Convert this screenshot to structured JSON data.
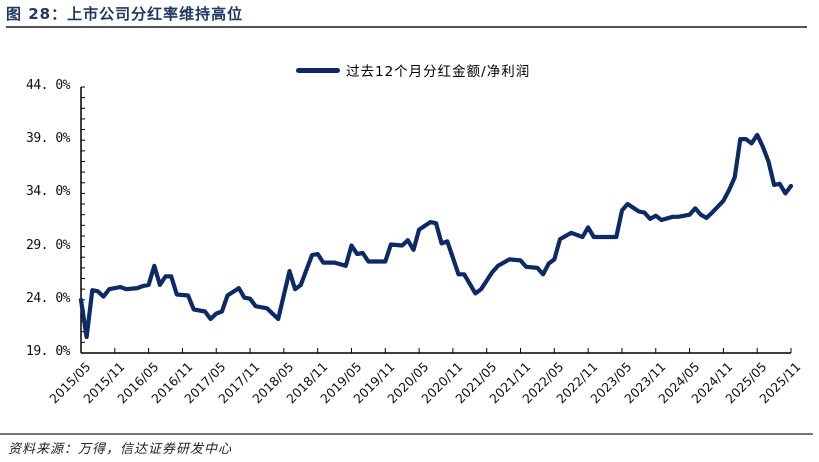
{
  "figure": {
    "title": "图 28：上市公司分红率维持高位",
    "source": "资料来源：万得，信达证券研发中心"
  },
  "colors": {
    "series": "#0b2a66",
    "title": "#1f3864",
    "axis": "#000000"
  },
  "chart_data": {
    "type": "line",
    "title": "图 28：上市公司分红率维持高位",
    "xlabel": "",
    "ylabel": "",
    "ylim": [
      19.0,
      44.0
    ],
    "yticks": [
      "19.0%",
      "24.0%",
      "29.0%",
      "34.0%",
      "39.0%",
      "44.0%"
    ],
    "xticks": [
      "2015/05",
      "2015/11",
      "2016/05",
      "2016/11",
      "2017/05",
      "2017/11",
      "2018/05",
      "2018/11",
      "2019/05",
      "2019/11",
      "2020/05",
      "2020/11",
      "2021/05",
      "2021/11",
      "2022/05",
      "2022/11",
      "2023/05",
      "2023/11",
      "2024/05",
      "2024/11",
      "2025/05",
      "2025/11"
    ],
    "grid": false,
    "legend_position": "top-center",
    "series": [
      {
        "name": "过去12个月分红金额/净利润",
        "points": [
          [
            "2015/05",
            24.0
          ],
          [
            "2015/06",
            20.5
          ],
          [
            "2015/07",
            24.9
          ],
          [
            "2015/08",
            24.8
          ],
          [
            "2015/09",
            24.3
          ],
          [
            "2015/10",
            25.0
          ],
          [
            "2015/12",
            25.2
          ],
          [
            "2016/01",
            25.0
          ],
          [
            "2016/03",
            25.1
          ],
          [
            "2016/04",
            25.3
          ],
          [
            "2016/05",
            25.4
          ],
          [
            "2016/06",
            27.2
          ],
          [
            "2016/07",
            25.4
          ],
          [
            "2016/08",
            26.2
          ],
          [
            "2016/09",
            26.2
          ],
          [
            "2016/10",
            24.5
          ],
          [
            "2016/12",
            24.4
          ],
          [
            "2017/01",
            23.1
          ],
          [
            "2017/03",
            22.9
          ],
          [
            "2017/04",
            22.2
          ],
          [
            "2017/05",
            22.7
          ],
          [
            "2017/06",
            22.9
          ],
          [
            "2017/07",
            24.4
          ],
          [
            "2017/09",
            25.1
          ],
          [
            "2017/10",
            24.2
          ],
          [
            "2017/11",
            24.1
          ],
          [
            "2017/12",
            23.4
          ],
          [
            "2018/02",
            23.2
          ],
          [
            "2018/04",
            22.2
          ],
          [
            "2018/06",
            26.7
          ],
          [
            "2018/07",
            25.0
          ],
          [
            "2018/08",
            25.4
          ],
          [
            "2018/10",
            28.2
          ],
          [
            "2018/11",
            28.3
          ],
          [
            "2018/12",
            27.5
          ],
          [
            "2019/02",
            27.5
          ],
          [
            "2019/04",
            27.2
          ],
          [
            "2019/05",
            29.1
          ],
          [
            "2019/06",
            28.3
          ],
          [
            "2019/07",
            28.4
          ],
          [
            "2019/08",
            27.6
          ],
          [
            "2019/11",
            27.6
          ],
          [
            "2019/12",
            29.2
          ],
          [
            "2020/02",
            29.1
          ],
          [
            "2020/03",
            29.6
          ],
          [
            "2020/04",
            28.7
          ],
          [
            "2020/05",
            30.6
          ],
          [
            "2020/07",
            31.3
          ],
          [
            "2020/08",
            31.2
          ],
          [
            "2020/09",
            29.3
          ],
          [
            "2020/10",
            29.5
          ],
          [
            "2020/12",
            26.4
          ],
          [
            "2021/01",
            26.4
          ],
          [
            "2021/03",
            24.6
          ],
          [
            "2021/04",
            25.0
          ],
          [
            "2021/06",
            26.6
          ],
          [
            "2021/07",
            27.2
          ],
          [
            "2021/09",
            27.8
          ],
          [
            "2021/11",
            27.7
          ],
          [
            "2021/12",
            27.1
          ],
          [
            "2022/02",
            27.0
          ],
          [
            "2022/03",
            26.4
          ],
          [
            "2022/04",
            27.4
          ],
          [
            "2022/05",
            27.8
          ],
          [
            "2022/06",
            29.7
          ],
          [
            "2022/08",
            30.3
          ],
          [
            "2022/10",
            29.9
          ],
          [
            "2022/11",
            30.8
          ],
          [
            "2022/12",
            29.9
          ],
          [
            "2023/01",
            29.9
          ],
          [
            "2023/04",
            29.9
          ],
          [
            "2023/05",
            32.4
          ],
          [
            "2023/06",
            33.0
          ],
          [
            "2023/08",
            32.3
          ],
          [
            "2023/09",
            32.2
          ],
          [
            "2023/10",
            31.6
          ],
          [
            "2023/11",
            31.9
          ],
          [
            "2023/12",
            31.5
          ],
          [
            "2024/02",
            31.8
          ],
          [
            "2024/03",
            31.8
          ],
          [
            "2024/05",
            32.0
          ],
          [
            "2024/06",
            32.6
          ],
          [
            "2024/07",
            32.0
          ],
          [
            "2024/08",
            31.7
          ],
          [
            "2024/09",
            32.2
          ],
          [
            "2024/11",
            33.3
          ],
          [
            "2024/12",
            34.3
          ],
          [
            "2025/01",
            35.5
          ],
          [
            "2025/02",
            39.1
          ],
          [
            "2025/03",
            39.1
          ],
          [
            "2025/04",
            38.7
          ],
          [
            "2025/05",
            39.5
          ],
          [
            "2025/06",
            38.4
          ],
          [
            "2025/07",
            37.0
          ],
          [
            "2025/08",
            34.8
          ],
          [
            "2025/09",
            34.9
          ],
          [
            "2025/10",
            34.0
          ],
          [
            "2025/11",
            34.7
          ]
        ]
      }
    ]
  }
}
